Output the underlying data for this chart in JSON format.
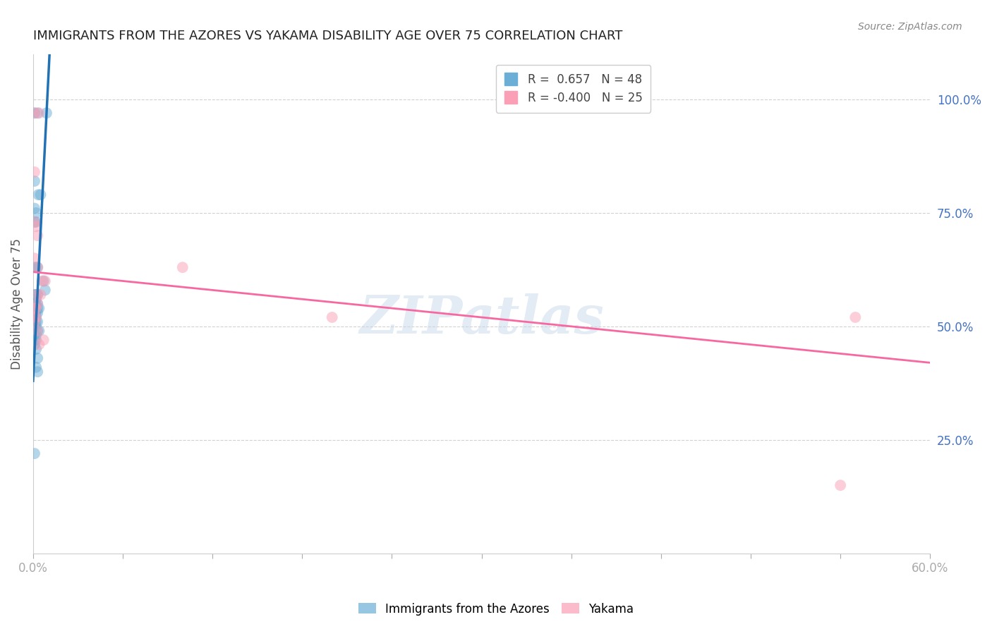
{
  "title": "IMMIGRANTS FROM THE AZORES VS YAKAMA DISABILITY AGE OVER 75 CORRELATION CHART",
  "source": "Source: ZipAtlas.com",
  "ylabel": "Disability Age Over 75",
  "ylabel_right_ticks": [
    "100.0%",
    "75.0%",
    "50.0%",
    "25.0%"
  ],
  "ylabel_right_vals": [
    100.0,
    75.0,
    50.0,
    25.0
  ],
  "xmin": 0.0,
  "xmax": 60.0,
  "ymin": 0.0,
  "ymax": 110.0,
  "watermark": "ZIPatlas",
  "blue_color": "#6baed6",
  "pink_color": "#fa9fb5",
  "blue_line_color": "#2171b5",
  "pink_line_color": "#f768a1",
  "blue_scatter": [
    [
      0.1,
      97
    ],
    [
      0.3,
      97
    ],
    [
      0.9,
      97
    ],
    [
      0.1,
      82
    ],
    [
      0.35,
      79
    ],
    [
      0.5,
      79
    ],
    [
      0.1,
      76
    ],
    [
      0.2,
      75
    ],
    [
      0.1,
      73
    ],
    [
      0.2,
      73
    ],
    [
      0.1,
      63
    ],
    [
      0.2,
      63
    ],
    [
      0.3,
      63
    ],
    [
      0.7,
      60
    ],
    [
      0.8,
      58
    ],
    [
      0.1,
      57
    ],
    [
      0.2,
      57
    ],
    [
      0.3,
      57
    ],
    [
      0.1,
      56
    ],
    [
      0.2,
      56
    ],
    [
      0.1,
      55
    ],
    [
      0.2,
      55
    ],
    [
      0.3,
      55
    ],
    [
      0.1,
      54
    ],
    [
      0.2,
      54
    ],
    [
      0.3,
      54
    ],
    [
      0.4,
      54
    ],
    [
      0.1,
      53
    ],
    [
      0.2,
      53
    ],
    [
      0.3,
      53
    ],
    [
      0.1,
      52
    ],
    [
      0.2,
      52
    ],
    [
      0.1,
      51
    ],
    [
      0.2,
      51
    ],
    [
      0.3,
      51
    ],
    [
      0.1,
      50
    ],
    [
      0.2,
      50
    ],
    [
      0.3,
      49
    ],
    [
      0.4,
      49
    ],
    [
      0.1,
      48
    ],
    [
      0.2,
      48
    ],
    [
      0.1,
      47
    ],
    [
      0.2,
      47
    ],
    [
      0.1,
      46
    ],
    [
      0.2,
      45
    ],
    [
      0.3,
      43
    ],
    [
      0.2,
      41
    ],
    [
      0.3,
      40
    ],
    [
      0.1,
      22
    ]
  ],
  "pink_scatter": [
    [
      0.1,
      97
    ],
    [
      0.4,
      97
    ],
    [
      0.1,
      84
    ],
    [
      0.2,
      72
    ],
    [
      0.3,
      70
    ],
    [
      0.1,
      65
    ],
    [
      0.3,
      63
    ],
    [
      0.6,
      60
    ],
    [
      0.8,
      60
    ],
    [
      0.3,
      57
    ],
    [
      0.5,
      57
    ],
    [
      0.3,
      55
    ],
    [
      0.1,
      54
    ],
    [
      0.2,
      54
    ],
    [
      0.1,
      52
    ],
    [
      0.2,
      52
    ],
    [
      0.1,
      51
    ],
    [
      0.3,
      49
    ],
    [
      0.7,
      47
    ],
    [
      0.4,
      46
    ],
    [
      10.0,
      63
    ],
    [
      20.0,
      52
    ],
    [
      55.0,
      52
    ],
    [
      54.0,
      15
    ],
    [
      0.1,
      73
    ]
  ],
  "blue_trendline_x": [
    0.0,
    1.1
  ],
  "blue_trendline_y": [
    38.0,
    110.0
  ],
  "pink_trendline_x": [
    0.0,
    60.0
  ],
  "pink_trendline_y": [
    62.0,
    42.0
  ],
  "background_color": "#ffffff",
  "grid_color": "#cccccc",
  "title_color": "#222222",
  "axis_label_color": "#4472c4",
  "right_tick_color": "#4472c4"
}
